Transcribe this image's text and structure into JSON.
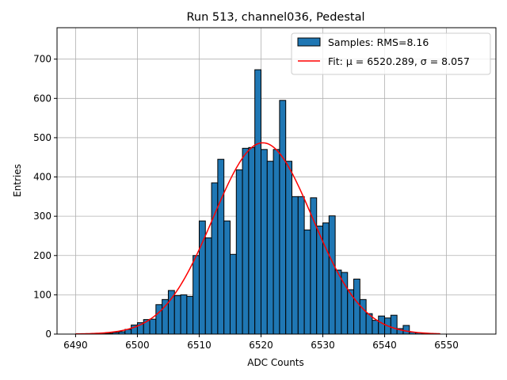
{
  "chart_data": {
    "type": "bar",
    "title": "Run 513, channel036, Pedestal",
    "xlabel": "ADC Counts",
    "ylabel": "Entries",
    "xlim": [
      6487,
      6558
    ],
    "ylim": [
      0,
      780
    ],
    "xticks": [
      6490,
      6500,
      6510,
      6520,
      6530,
      6540,
      6550
    ],
    "yticks": [
      0,
      100,
      200,
      300,
      400,
      500,
      600,
      700
    ],
    "grid": true,
    "legend_position": "top-right",
    "bar_color": "#1f77b4",
    "fit_color": "#ff0000",
    "bins": [
      [
        6494,
        6495,
        1
      ],
      [
        6495,
        6496,
        2
      ],
      [
        6496,
        6497,
        4
      ],
      [
        6497,
        6498,
        6
      ],
      [
        6498,
        6499,
        12
      ],
      [
        6499,
        6500,
        23
      ],
      [
        6500,
        6501,
        29
      ],
      [
        6501,
        6502,
        37
      ],
      [
        6502,
        6503,
        38
      ],
      [
        6503,
        6504,
        75
      ],
      [
        6504,
        6505,
        88
      ],
      [
        6505,
        6506,
        111
      ],
      [
        6506,
        6507,
        98
      ],
      [
        6507,
        6508,
        100
      ],
      [
        6508,
        6509,
        96
      ],
      [
        6509,
        6510,
        200
      ],
      [
        6510,
        6511,
        288
      ],
      [
        6511,
        6512,
        245
      ],
      [
        6512,
        6513,
        385
      ],
      [
        6513,
        6514,
        445
      ],
      [
        6514,
        6515,
        288
      ],
      [
        6515,
        6516,
        203
      ],
      [
        6516,
        6517,
        418
      ],
      [
        6517,
        6518,
        473
      ],
      [
        6518,
        6519,
        475
      ],
      [
        6519,
        6520,
        673
      ],
      [
        6520,
        6521,
        470
      ],
      [
        6521,
        6522,
        440
      ],
      [
        6522,
        6523,
        470
      ],
      [
        6523,
        6524,
        595
      ],
      [
        6524,
        6525,
        440
      ],
      [
        6525,
        6526,
        350
      ],
      [
        6526,
        6527,
        350
      ],
      [
        6527,
        6528,
        265
      ],
      [
        6528,
        6529,
        347
      ],
      [
        6529,
        6530,
        275
      ],
      [
        6530,
        6531,
        283
      ],
      [
        6531,
        6532,
        301
      ],
      [
        6532,
        6533,
        163
      ],
      [
        6533,
        6534,
        157
      ],
      [
        6534,
        6535,
        113
      ],
      [
        6535,
        6536,
        140
      ],
      [
        6536,
        6537,
        88
      ],
      [
        6537,
        6538,
        52
      ],
      [
        6538,
        6539,
        35
      ],
      [
        6539,
        6540,
        46
      ],
      [
        6540,
        6541,
        41
      ],
      [
        6541,
        6542,
        48
      ],
      [
        6542,
        6543,
        14
      ],
      [
        6543,
        6544,
        22
      ],
      [
        6544,
        6545,
        5
      ],
      [
        6545,
        6546,
        3
      ],
      [
        6546,
        6547,
        2
      ]
    ],
    "series": [
      {
        "name": "Samples: RMS=8.16",
        "type": "histogram"
      },
      {
        "name": "Fit: μ = 6520.289, σ = 8.057",
        "type": "line",
        "mu": 6520.289,
        "sigma": 8.057,
        "amplitude": 487,
        "x_range": [
          6490,
          6549
        ]
      }
    ]
  }
}
